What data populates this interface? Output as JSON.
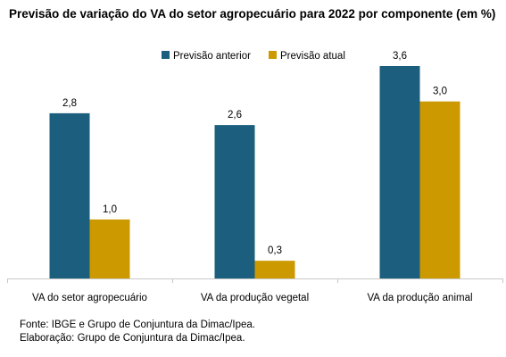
{
  "title": "Previsão de variação do VA do setor agropecuário para 2022 por componente (em %)",
  "colors": {
    "anterior": "#1b5e7e",
    "atual": "#cc9900",
    "axis": "#c8c8c8",
    "text": "#000000"
  },
  "chart_data": {
    "type": "bar",
    "title": "Previsão de variação do VA do setor agropecuário para 2022 por componente (em %)",
    "categories": [
      "VA do setor agropecuário",
      "VA da produção vegetal",
      "VA da produção animal"
    ],
    "series": [
      {
        "name": "Previsão anterior",
        "values": [
          2.8,
          2.6,
          3.6
        ],
        "labels": [
          "2,8",
          "2,6",
          "3,6"
        ]
      },
      {
        "name": "Previsão atual",
        "values": [
          1.0,
          0.3,
          3.0
        ],
        "labels": [
          "1,0",
          "0,3",
          "3,0"
        ]
      }
    ],
    "xlabel": "",
    "ylabel": "",
    "ylim": [
      0,
      3.6
    ],
    "grid": false,
    "legend": "top-center"
  },
  "footer": {
    "source": "Fonte: IBGE e Grupo de Conjuntura da Dimac/Ipea.",
    "elaboration": "Elaboração: Grupo de Conjuntura da Dimac/Ipea."
  }
}
